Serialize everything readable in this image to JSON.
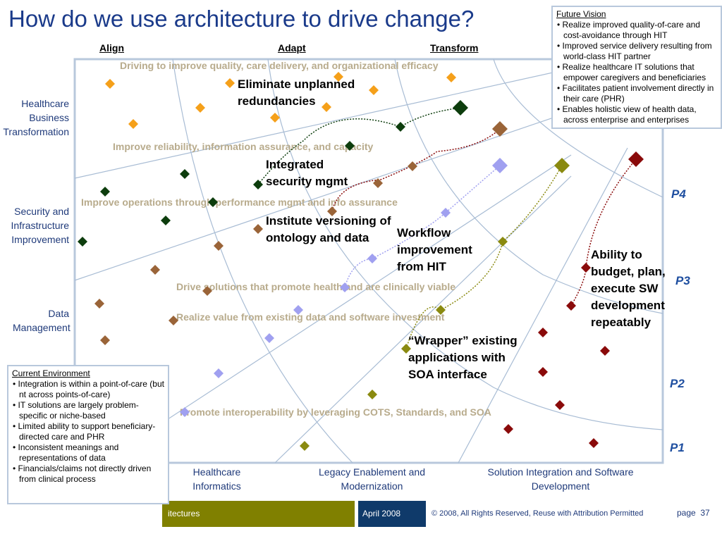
{
  "title": "How do we use architecture to drive change?",
  "columns_top": [
    "Align",
    "Adapt",
    "Transform"
  ],
  "rows": [
    "Healthcare Business Transformation",
    "Security and Infrastructure Improvement",
    "Data Management"
  ],
  "columns_bottom": [
    "Healthcare Informatics",
    "Legacy Enablement and Modernization",
    "Solution Integration and Software Development"
  ],
  "phases": [
    "P4",
    "P3",
    "P2",
    "P1"
  ],
  "bands": [
    "Driving to improve quality, care delivery, and organizational efficacy",
    "Improve reliability, information assurance, and capacity",
    "Improve operations through performance mgmt and info assurance",
    "Drive solutions that promote health and are clinically viable",
    "Realize value from existing data and software investment",
    "Promote interoperability by leveraging COTS, Standards, and SOA"
  ],
  "annotations": [
    "Eliminate unplanned redundancies",
    "Integrated security mgmt",
    "Institute versioning of ontology and data",
    "Workflow improvement from HIT",
    "“Wrapper” existing applications with SOA interface",
    "Ability to budget, plan, execute SW development repeatably"
  ],
  "future_vision": {
    "heading": "Future Vision",
    "items": [
      "Realize improved quality-of-care and cost-avoidance through HIT",
      "Improved service delivery resulting from world-class HIT partner",
      "Realize healthcare IT solutions that empower caregivers and beneficiaries",
      "Facilitates patient involvement directly in their care (PHR)",
      "Enables holistic view of health data, across enterprise and enterprises"
    ]
  },
  "current_environment": {
    "heading": "Current Environment",
    "items": [
      "Integration is within a point-of-care (but nt across points-of-care)",
      "IT solutions are largely problem-specific or niche-based",
      "Limited ability to support beneficiary-directed care and PHR",
      "Inconsistent meanings and representations of data",
      "Financials/claims not directly driven from clinical process"
    ]
  },
  "footer": {
    "left": "itectures",
    "date": "April 2008",
    "copyright": "© 2008, All Rights Reserved, Reuse with Attribution Permitted",
    "page_label": "page",
    "page_number": "37"
  },
  "colors": {
    "orange": "#f5a01a",
    "dark_green": "#0d3d0d",
    "brown": "#9a6438",
    "lavender": "#a0a0f0",
    "olive": "#8a8a10",
    "dark_red": "#8a0a0a",
    "band_text": "#b8ab8c",
    "footer_olive": "#808000",
    "footer_navy": "#0f3a6a"
  }
}
